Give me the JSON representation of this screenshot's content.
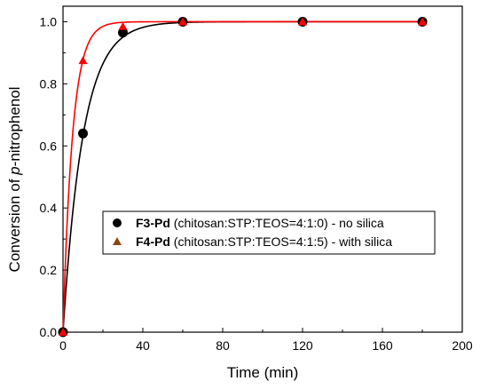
{
  "chart_data": {
    "type": "scatter",
    "title": "",
    "xlabel": "Time (min)",
    "ylabel": {
      "prefix": "Conversion of ",
      "italic": "p",
      "suffix": "-nitrophenol"
    },
    "xlim": [
      0,
      200
    ],
    "ylim": [
      0,
      1.05
    ],
    "xticks": [
      "0",
      "40",
      "80",
      "120",
      "160",
      "200"
    ],
    "xtick_values": [
      0,
      40,
      80,
      120,
      160,
      200
    ],
    "yticks": [
      "0.0",
      "0.2",
      "0.4",
      "0.6",
      "0.8",
      "1.0"
    ],
    "ytick_values": [
      0,
      0.2,
      0.4,
      0.6,
      0.8,
      1.0
    ],
    "grid": false,
    "legend_position": "center-right",
    "series": [
      {
        "bold": "F3-Pd",
        "rest": " (chitosan:STP:TEOS=4:1:0) - no silica",
        "marker": "circle",
        "color": "#000000",
        "fit_rate": 0.1,
        "x": [
          0,
          10,
          30,
          60,
          120,
          180
        ],
        "y": [
          0.0,
          0.64,
          0.965,
          1.0,
          1.0,
          1.0
        ]
      },
      {
        "bold": "F4-Pd",
        "rest": " (chitosan:STP:TEOS=4:1:5) - with silica",
        "marker": "triangle",
        "color": "#8B4513",
        "line_color": "#ff0000",
        "fit_rate": 0.21,
        "x": [
          0,
          10,
          30,
          60,
          120,
          180
        ],
        "y": [
          0.0,
          0.875,
          0.985,
          1.0,
          1.0,
          1.0
        ]
      }
    ]
  }
}
